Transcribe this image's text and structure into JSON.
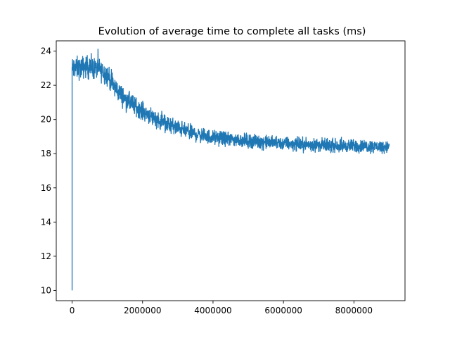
{
  "chart_data": {
    "type": "line",
    "title": "Evolution of average time to complete all tasks (ms)",
    "xlabel": "",
    "ylabel": "",
    "xlim": [
      -450000,
      9450000
    ],
    "ylim": [
      9.4,
      24.6
    ],
    "x_ticks": [
      0,
      2000000,
      4000000,
      6000000,
      8000000
    ],
    "x_tick_labels": [
      "0",
      "2000000",
      "4000000",
      "6000000",
      "8000000"
    ],
    "y_ticks": [
      10,
      12,
      14,
      16,
      18,
      20,
      22,
      24
    ],
    "y_tick_labels": [
      "10",
      "12",
      "14",
      "16",
      "18",
      "20",
      "22",
      "24"
    ],
    "grid": false,
    "legend": "none",
    "series_color": "#1f77b4",
    "x_start": 0,
    "x_end": 9000000,
    "initial_value": 10.0,
    "trend": {
      "x": [
        0,
        200000,
        400000,
        600000,
        800000,
        1000000,
        1200000,
        1500000,
        2000000,
        2500000,
        3000000,
        3500000,
        4000000,
        5000000,
        6000000,
        7000000,
        8000000,
        9000000
      ],
      "y": [
        23.0,
        23.0,
        23.1,
        23.0,
        22.9,
        22.6,
        21.9,
        21.2,
        20.5,
        19.9,
        19.5,
        19.15,
        18.95,
        18.75,
        18.6,
        18.5,
        18.45,
        18.4
      ]
    },
    "band_halfwidth": {
      "x": [
        0,
        1000000,
        2000000,
        4000000,
        9000000
      ],
      "y": [
        0.65,
        0.6,
        0.5,
        0.4,
        0.35
      ]
    }
  }
}
